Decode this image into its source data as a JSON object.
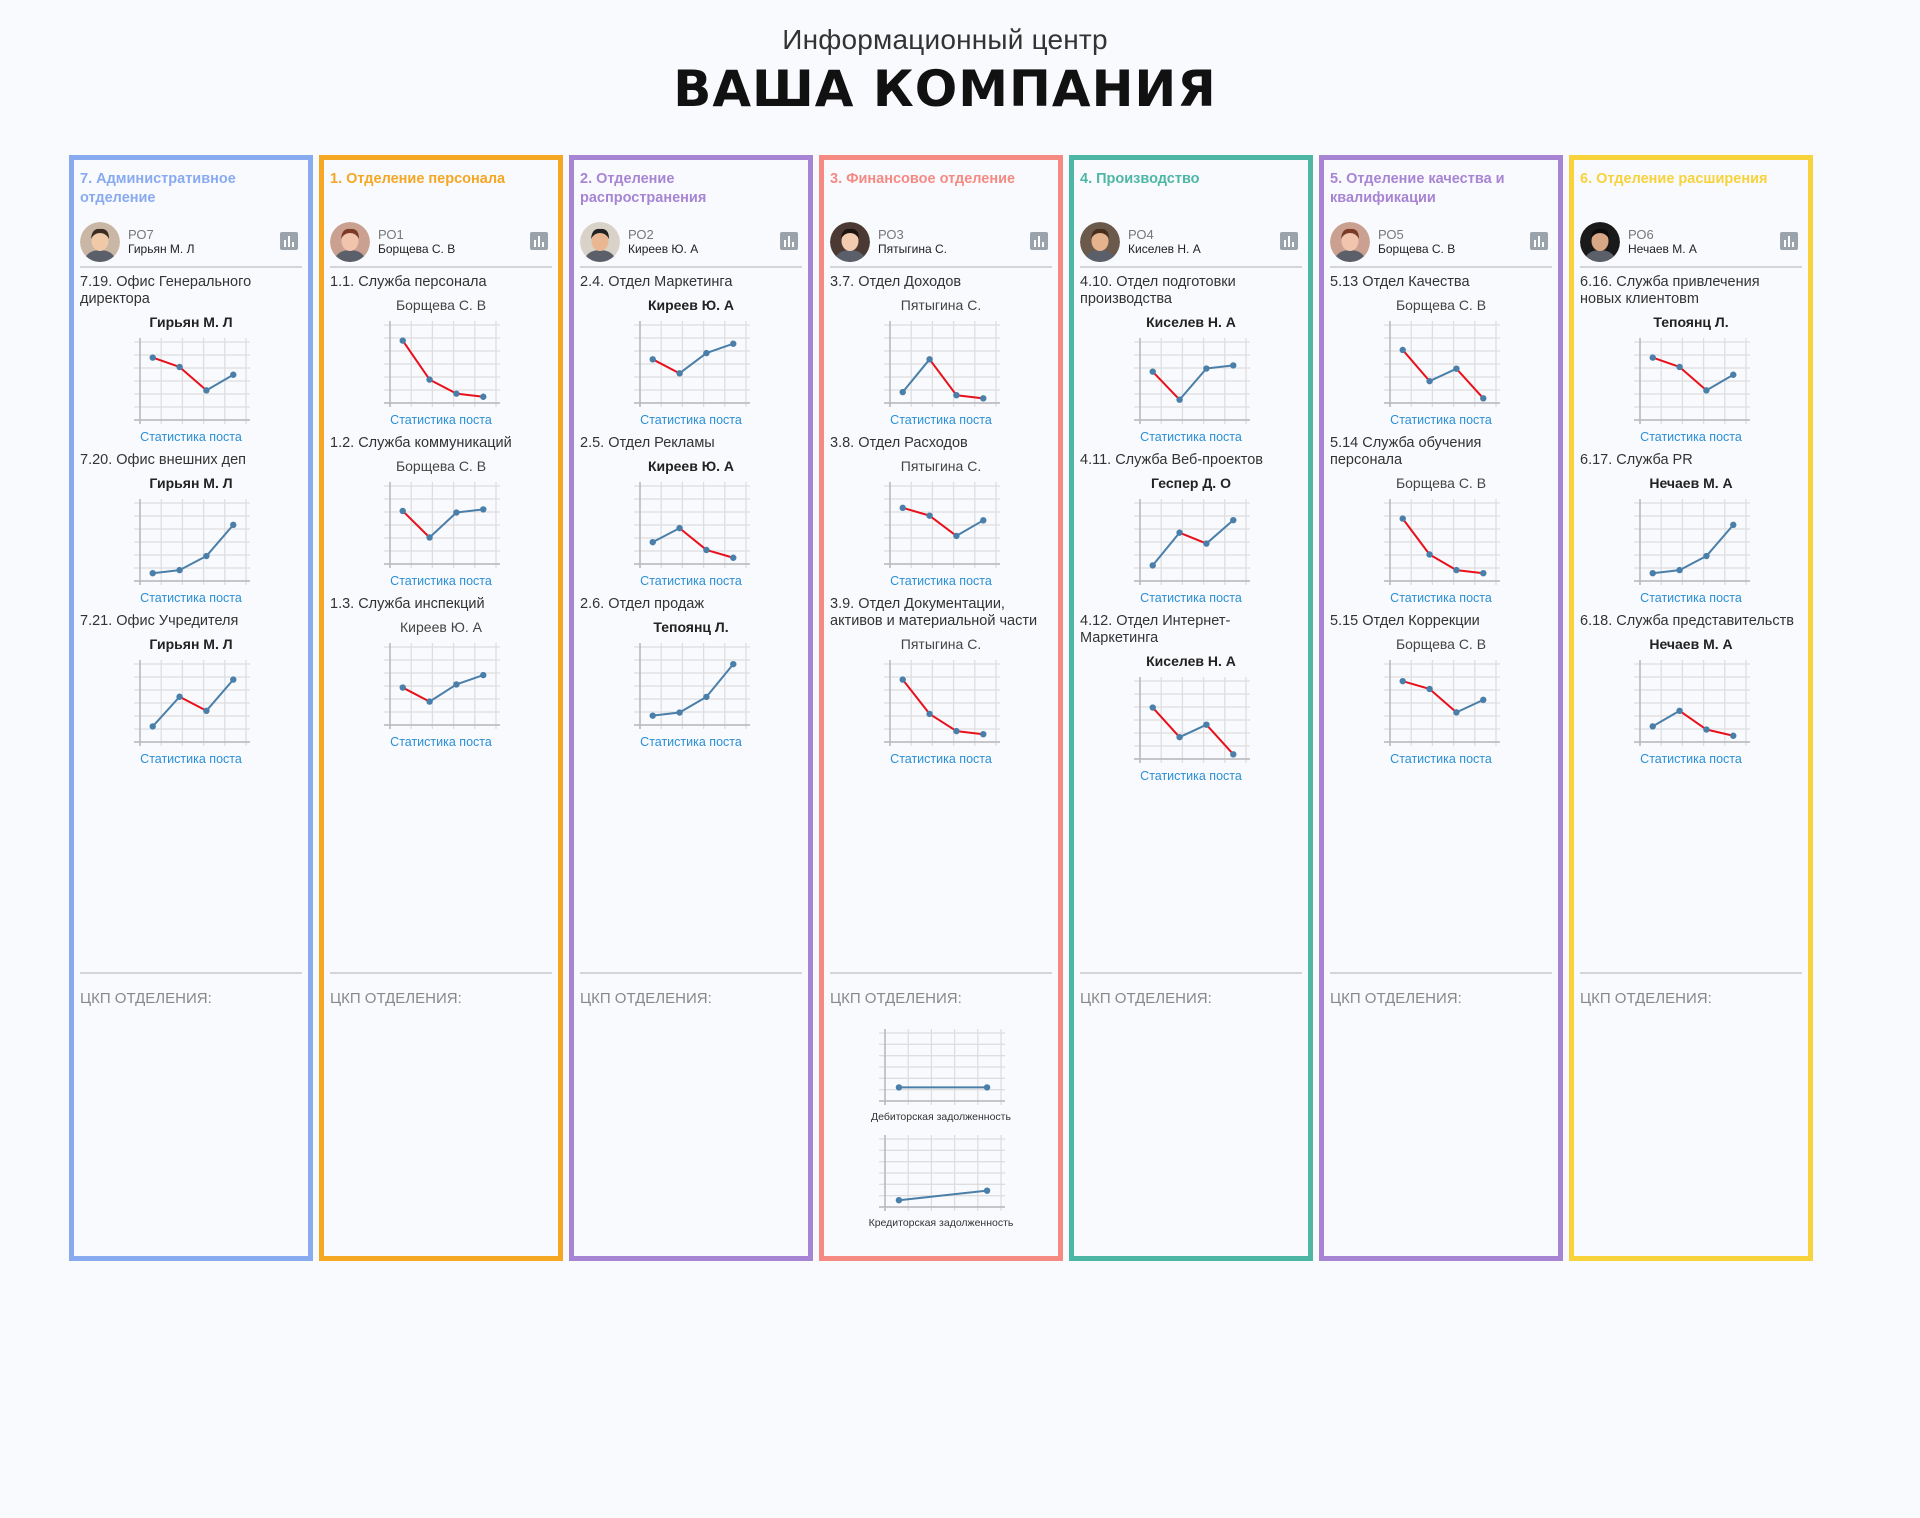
{
  "header": {
    "subtitle": "Информационный центр",
    "title": "ВАША КОМПАНИЯ"
  },
  "colors": {
    "line": "#4a7fa9",
    "down": "#e8101a",
    "grid": "#dedee0"
  },
  "columns": [
    {
      "title": "7. Административное отделение",
      "color": "#88aaf0",
      "person": {
        "code": "РО7",
        "name": "Гирьян М. Л"
      },
      "ckp_label": "ЦКП ОТДЕЛЕНИЯ:",
      "posts": [
        {
          "title": "7.19. Офис Генерального директора",
          "person": "Гирьян М. Л",
          "stat_label": "Статистика поста",
          "chart_data": {
            "type": "line",
            "values": [
              80,
              68,
              38,
              58
            ]
          }
        },
        {
          "title": "7.20. Офис внешних деп",
          "person": "Гирьян М. Л",
          "stat_label": "Статистика поста",
          "chart_data": {
            "type": "line",
            "values": [
              10,
              14,
              32,
              72
            ]
          }
        },
        {
          "title": "7.21. Офис Учредителя",
          "person": "Гирьян М. Л",
          "stat_label": "Статистика поста",
          "chart_data": {
            "type": "line",
            "values": [
              20,
              58,
              40,
              80
            ]
          }
        }
      ]
    },
    {
      "title": "1. Отделение персонала",
      "color": "#f5a623",
      "person": {
        "code": "РО1",
        "name": "Борщева С. В"
      },
      "ckp_label": "ЦКП ОТДЕЛЕНИЯ:",
      "posts": [
        {
          "title": "1.1. Служба персонала",
          "person": "Борщева С. В",
          "stat_label": "Статистика поста",
          "chart_data": {
            "type": "line",
            "values": [
              80,
              30,
              12,
              8
            ]
          }
        },
        {
          "title": "1.2. Служба коммуникаций",
          "person": "Борщева С. В",
          "stat_label": "Статистика поста",
          "chart_data": {
            "type": "line",
            "values": [
              68,
              34,
              66,
              70
            ]
          }
        },
        {
          "title": "1.3. Служба инспекций",
          "person": "Киреев Ю. А",
          "stat_label": "Статистика поста",
          "chart_data": {
            "type": "line",
            "values": [
              48,
              30,
              52,
              64
            ]
          }
        }
      ]
    },
    {
      "title": "2. Отделение распространения",
      "color": "#a784d4",
      "person": {
        "code": "РО2",
        "name": "Киреев Ю. А"
      },
      "ckp_label": "ЦКП ОТДЕЛЕНИЯ:",
      "posts": [
        {
          "title": "2.4. Отдел Маркетинга",
          "person": "Киреев Ю. А",
          "stat_label": "Статистика поста",
          "chart_data": {
            "type": "line",
            "values": [
              56,
              38,
              64,
              76
            ]
          }
        },
        {
          "title": "2.5. Отдел Рекламы",
          "person": "Киреев Ю. А",
          "stat_label": "Статистика поста",
          "chart_data": {
            "type": "line",
            "values": [
              28,
              46,
              18,
              8
            ]
          }
        },
        {
          "title": "2.6. Отдел продаж",
          "person": "Тепоянц Л.",
          "stat_label": "Статистика поста",
          "chart_data": {
            "type": "line",
            "values": [
              12,
              16,
              36,
              78
            ]
          }
        }
      ]
    },
    {
      "title": "3. Финансовое отделение",
      "color": "#f58a83",
      "person": {
        "code": "РО3",
        "name": "Пятыгина С."
      },
      "ckp_label": "ЦКП ОТДЕЛЕНИЯ:",
      "posts": [
        {
          "title": "3.7. Отдел Доходов",
          "person": "Пятыгина С.",
          "stat_label": "Статистика поста",
          "chart_data": {
            "type": "line",
            "values": [
              14,
              56,
              10,
              6
            ]
          }
        },
        {
          "title": "3.8. Отдел Расходов",
          "person": "Пятыгина С.",
          "stat_label": "Статистика поста",
          "chart_data": {
            "type": "line",
            "values": [
              72,
              62,
              36,
              56
            ]
          }
        },
        {
          "title": "3.9. Отдел Документации, активов и материальной части",
          "person": "Пятыгина С.",
          "stat_label": "Статистика поста",
          "chart_data": {
            "type": "line",
            "values": [
              80,
              36,
              14,
              10
            ]
          }
        }
      ],
      "ckp_charts": [
        {
          "label": "Дебиторская задолженность",
          "chart_data": {
            "type": "line",
            "values": [
              20,
              20
            ]
          }
        },
        {
          "label": "Кредиторская задолженность",
          "chart_data": {
            "type": "line",
            "values": [
              10,
              24
            ]
          }
        }
      ]
    },
    {
      "title": "4. Производство",
      "color": "#4db6a5",
      "person": {
        "code": "РО4",
        "name": "Киселев Н. А"
      },
      "ckp_label": "ЦКП ОТДЕЛЕНИЯ:",
      "posts": [
        {
          "title": "4.10. Отдел подготовки производства",
          "person": "Киселев Н. А",
          "stat_label": "Статистика поста",
          "chart_data": {
            "type": "line",
            "values": [
              62,
              26,
              66,
              70
            ]
          }
        },
        {
          "title": "4.11. Служба Веб-проектов",
          "person": "Геспер Д. О",
          "stat_label": "Статистика поста",
          "chart_data": {
            "type": "line",
            "values": [
              20,
              62,
              48,
              78
            ]
          }
        },
        {
          "title": "4.12. Отдел Интернет-Маркетинга",
          "person": "Киселев Н. А",
          "stat_label": "Статистика поста",
          "chart_data": {
            "type": "line",
            "values": [
              66,
              28,
              44,
              6
            ]
          }
        }
      ]
    },
    {
      "title": "5. Отделение качества и квалификации",
      "color": "#a784d4",
      "person": {
        "code": "РО5",
        "name": "Борщева С. В"
      },
      "ckp_label": "ЦКП ОТДЕЛЕНИЯ:",
      "posts": [
        {
          "title": "5.13 Отдел Качества",
          "person": "Борщева С. В",
          "stat_label": "Статистика поста",
          "chart_data": {
            "type": "line",
            "values": [
              68,
              28,
              44,
              6
            ]
          }
        },
        {
          "title": "5.14 Служба обучения персонала",
          "person": "Борщева С. В",
          "stat_label": "Статистика поста",
          "chart_data": {
            "type": "line",
            "values": [
              80,
              34,
              14,
              10
            ]
          }
        },
        {
          "title": "5.15 Отдел Коррекции",
          "person": "Борщева С. В",
          "stat_label": "Статистика поста",
          "chart_data": {
            "type": "line",
            "values": [
              78,
              68,
              38,
              54
            ]
          }
        }
      ]
    },
    {
      "title": "6. Отделение расширения",
      "color": "#f7d23a",
      "person": {
        "code": "РО6",
        "name": "Нечаев М. А"
      },
      "ckp_label": "ЦКП ОТДЕЛЕНИЯ:",
      "posts": [
        {
          "title": "6.16. Служба привлечения новых клиентовm",
          "person": "Тепоянц Л.",
          "stat_label": "Статистика поста",
          "chart_data": {
            "type": "line",
            "values": [
              80,
              68,
              38,
              58
            ]
          }
        },
        {
          "title": "6.17. Служба PR",
          "person": "Нечаев М. А",
          "stat_label": "Статистика поста",
          "chart_data": {
            "type": "line",
            "values": [
              10,
              14,
              32,
              72
            ]
          }
        },
        {
          "title": "6.18. Служба представительств",
          "person": "Нечаев М. А",
          "stat_label": "Статистика поста",
          "chart_data": {
            "type": "line",
            "values": [
              20,
              40,
              16,
              8
            ]
          }
        }
      ]
    }
  ]
}
